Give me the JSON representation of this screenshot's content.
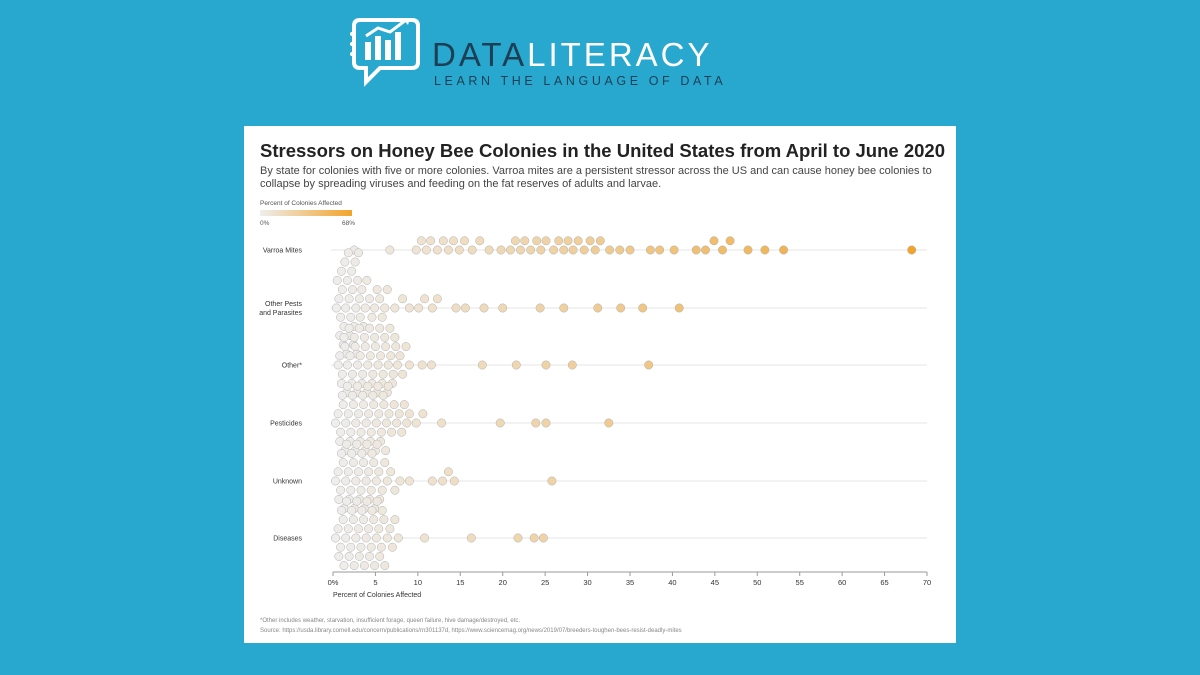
{
  "logo": {
    "name_part1": "DATA",
    "name_part2": "LITERACY",
    "tagline": "LEARN THE LANGUAGE OF DATA",
    "icon": "chat-bubble-bar-chart-icon"
  },
  "colors": {
    "background": "#29a8cf",
    "logo_dark": "#1d3f55",
    "low": "#eeeeee",
    "high": "#f2a42a"
  },
  "chart_data": {
    "type": "scatter",
    "title": "Stressors on Honey Bee Colonies in the United States from April to June 2020",
    "subtitle": "By state for colonies with five or more colonies. Varroa mites are a persistent stressor across the US and can cause honey bee colonies to collapse by spreading viruses and feeding on the fat reserves of adults and larvae.",
    "legend": {
      "title": "Percent of Colonies Affected",
      "min_label": "0%",
      "max_label": "68%",
      "min": 0,
      "max": 68
    },
    "xlabel": "Percent of Colonies Affected",
    "xlim": [
      0,
      70
    ],
    "xticks": [
      "0%",
      "5",
      "10",
      "15",
      "20",
      "25",
      "30",
      "35",
      "40",
      "45",
      "50",
      "55",
      "60",
      "65",
      "70"
    ],
    "grid": false,
    "categories": [
      "Varroa Mites",
      "Other Pests and Parasites",
      "Other*",
      "Pesticides",
      "Unknown",
      "Diseases"
    ],
    "series": [
      {
        "name": "Varroa Mites",
        "values": [
          2.5,
          6.7,
          9.8,
          10.4,
          11,
          11.5,
          12.3,
          13,
          13.6,
          14.2,
          14.9,
          15.5,
          16.4,
          17.3,
          18.4,
          19.8,
          20.9,
          21.5,
          22.1,
          22.6,
          23.3,
          24,
          24.5,
          25.1,
          26,
          26.6,
          27.2,
          27.7,
          28.3,
          28.9,
          29.6,
          30.3,
          30.9,
          31.5,
          32.6,
          33.8,
          35,
          37.4,
          38.5,
          40.2,
          42.8,
          43.9,
          44.9,
          45.9,
          46.8,
          48.9,
          50.9,
          53.1,
          68.2
        ]
      },
      {
        "name": "Other Pests and Parasites",
        "values": [
          0.4,
          0.7,
          0.9,
          1.1,
          1.3,
          1.5,
          1.7,
          1.9,
          2.1,
          2.3,
          2.5,
          2.7,
          2.9,
          3.1,
          0.5,
          0.8,
          1,
          1.2,
          1.4,
          1.6,
          1.8,
          2,
          2.2,
          2.4,
          2.6,
          2.8,
          3,
          3.2,
          3.4,
          3.6,
          3.8,
          4,
          4.3,
          4.6,
          4.9,
          5.2,
          5.5,
          5.8,
          6.1,
          6.4,
          7.3,
          8.2,
          9,
          10.1,
          10.8,
          11.7,
          12.3,
          14.5,
          15.6,
          17.8,
          20,
          24.4,
          27.2,
          31.2,
          33.9,
          36.5,
          40.8
        ]
      },
      {
        "name": "Other*",
        "values": [
          0.6,
          0.8,
          1.1,
          1.4,
          1.7,
          2,
          2.3,
          2.6,
          2.9,
          3.2,
          3.5,
          3.8,
          4.1,
          4.4,
          4.7,
          5,
          5.3,
          5.6,
          5.9,
          6.2,
          6.5,
          6.8,
          7.1,
          7.4,
          1,
          1.3,
          1.6,
          1.9,
          2.2,
          2.5,
          2.8,
          3.1,
          3.4,
          3.7,
          4,
          4.3,
          4.6,
          4.9,
          5.2,
          5.5,
          5.8,
          6.1,
          6.4,
          6.7,
          7,
          7.3,
          7.6,
          7.9,
          8.2,
          8.6,
          9,
          10.5,
          11.6,
          17.6,
          21.6,
          25.1,
          28.2,
          37.2
        ]
      },
      {
        "name": "Pesticides",
        "values": [
          0.3,
          0.6,
          0.9,
          1.2,
          1.5,
          1.8,
          2.1,
          2.4,
          2.7,
          3,
          3.3,
          3.6,
          3.9,
          4.2,
          4.5,
          4.8,
          5.1,
          5.4,
          5.7,
          6,
          6.3,
          6.6,
          6.9,
          7.2,
          7.5,
          7.8,
          8.1,
          8.4,
          8.7,
          9,
          0.8,
          1.1,
          1.4,
          1.7,
          2,
          2.3,
          2.6,
          2.9,
          3.2,
          3.5,
          3.8,
          4.1,
          4.4,
          4.7,
          5,
          5.3,
          5.6,
          5.9,
          6.2,
          6.5,
          9.8,
          10.6,
          12.8,
          19.7,
          23.9,
          25.1,
          32.5
        ]
      },
      {
        "name": "Unknown",
        "values": [
          0.3,
          0.6,
          0.9,
          1.2,
          1.5,
          1.8,
          2.1,
          2.4,
          2.7,
          3,
          3.3,
          3.6,
          3.9,
          4.2,
          4.5,
          4.8,
          5.1,
          5.4,
          0.7,
          1,
          1.3,
          1.6,
          1.9,
          2.2,
          2.5,
          2.8,
          3.1,
          3.4,
          3.7,
          4,
          4.3,
          4.6,
          4.9,
          5.2,
          5.5,
          5.8,
          6.1,
          6.4,
          6.8,
          7.3,
          7.9,
          9,
          11.7,
          12.9,
          13.6,
          14.3,
          25.8
        ]
      },
      {
        "name": "Diseases",
        "values": [
          0.3,
          0.6,
          0.9,
          1.2,
          1.5,
          1.8,
          2.1,
          2.4,
          2.7,
          3,
          3.3,
          3.6,
          3.9,
          4.2,
          4.5,
          4.8,
          5.1,
          5.4,
          5.7,
          6,
          0.7,
          1,
          1.3,
          1.6,
          1.9,
          2.2,
          2.5,
          2.8,
          3.1,
          3.4,
          3.7,
          4,
          4.3,
          4.6,
          4.9,
          5.2,
          5.5,
          5.8,
          6.1,
          6.4,
          6.7,
          7,
          7.3,
          7.7,
          10.8,
          16.3,
          21.8,
          23.7,
          24.8
        ]
      }
    ],
    "footnote": "*Other includes weather, starvation, insufficient forage, queen failure, hive damage/destroyed, etc.",
    "source": "Source: https://usda.library.cornell.edu/concern/publications/rn301137d, https://www.sciencemag.org/news/2019/07/breeders-toughen-bees-resist-deadly-mites"
  }
}
